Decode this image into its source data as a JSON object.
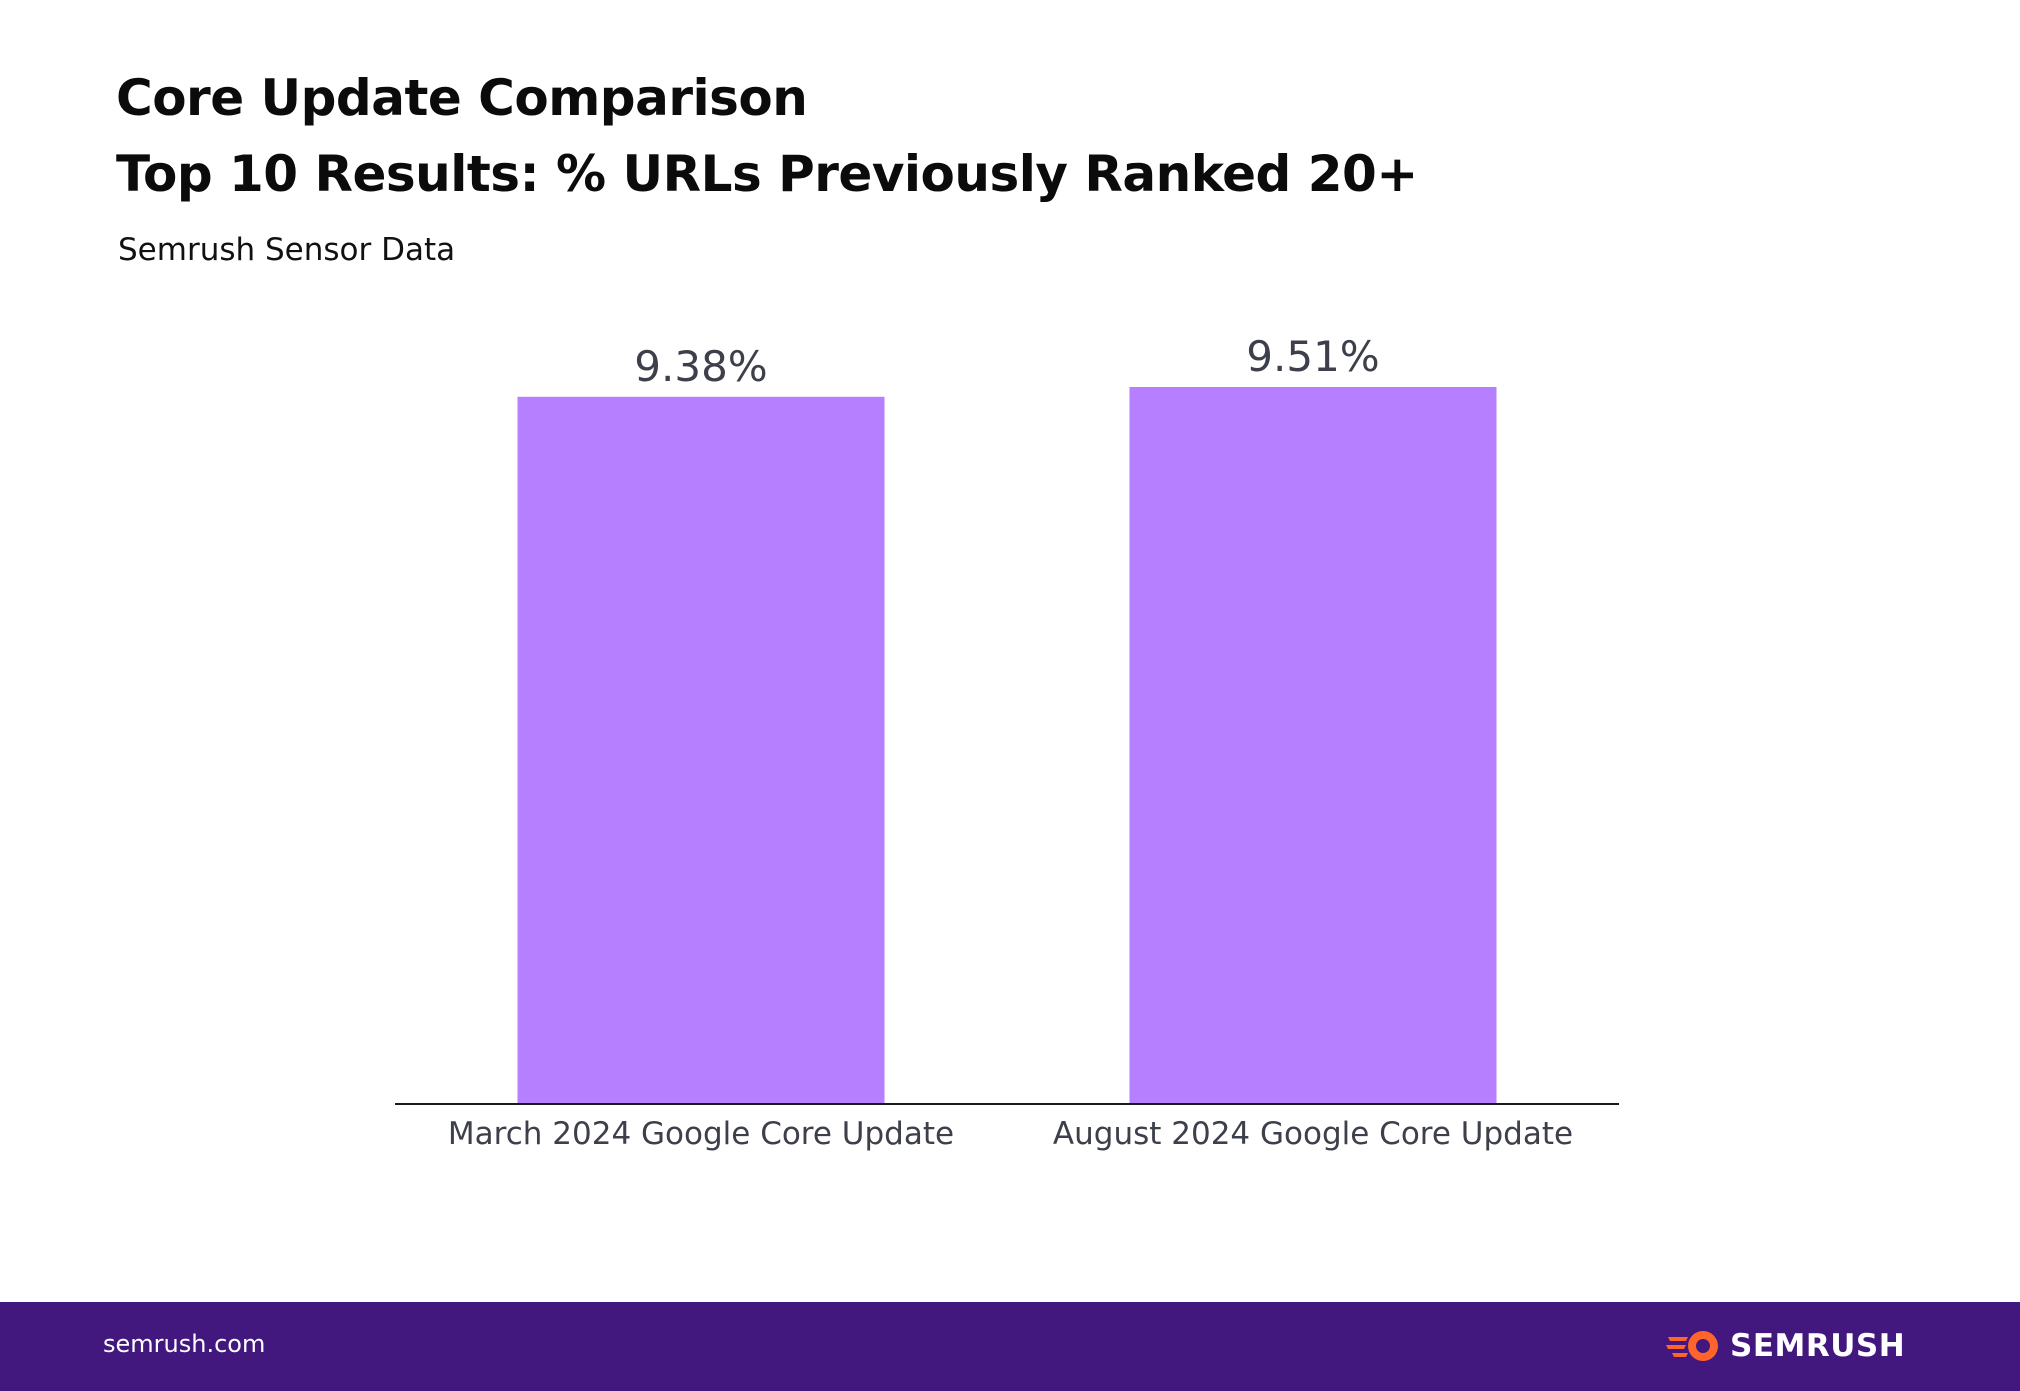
{
  "chart_data": {
    "type": "bar",
    "title": "Core Update Comparison",
    "subtitle": "Top 10 Results: % URLs Previously Ranked 20+",
    "source_note": "Semrush Sensor Data",
    "categories": [
      "March 2024 Google Core Update",
      "August 2024 Google Core Update"
    ],
    "values": [
      9.38,
      9.51
    ],
    "value_labels": [
      "9.38%",
      "9.51%"
    ],
    "ylim": [
      0,
      9.51
    ],
    "bar_color": "#b57fff",
    "axis_color": "#1a1a1a",
    "grid": false
  },
  "footer": {
    "url": "semrush.com",
    "brand": "SEMRUSH",
    "background": "#42187f",
    "logo_color": "#ff642d",
    "icon": "semrush-fire-icon"
  }
}
